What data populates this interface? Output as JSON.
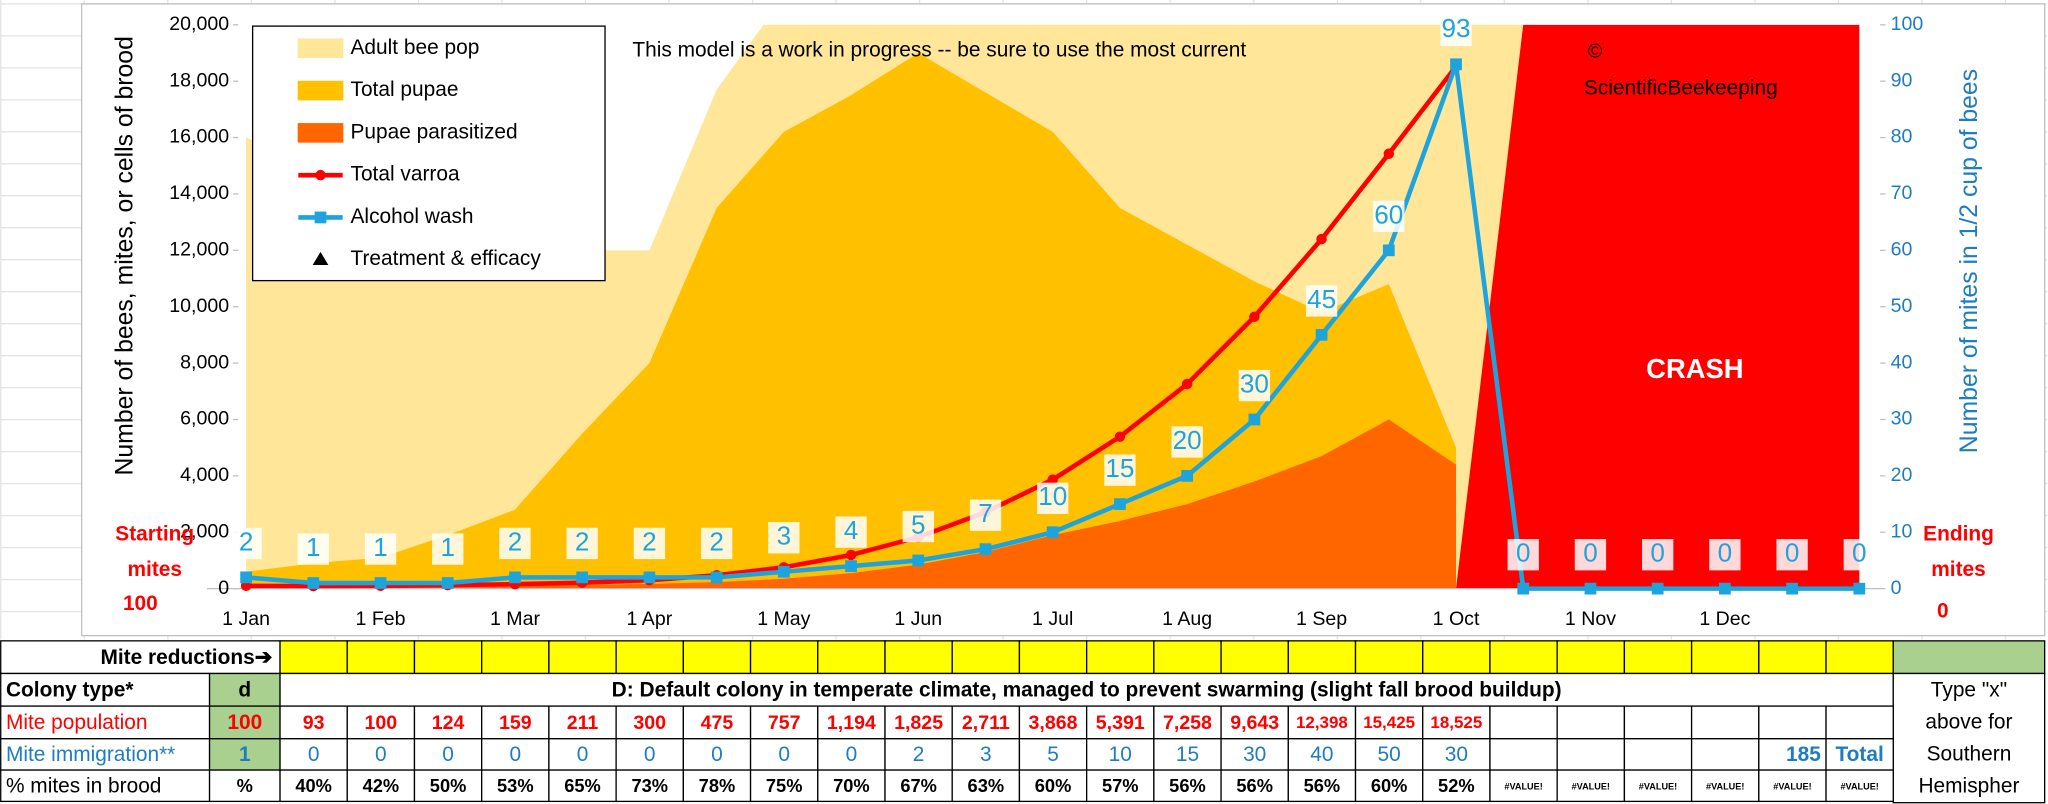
{
  "chart_data": {
    "type": "combo",
    "annotations": [
      "This model  is a work in progress -- be sure to use the most current",
      "©",
      "ScientificBeekeeping",
      "CRASH"
    ],
    "start_note": {
      "lines": [
        "Starting",
        "mites"
      ],
      "value": 100
    },
    "end_note": {
      "lines": [
        "Ending",
        "mites"
      ],
      "value": 0
    },
    "y_label": "Number of bees, mites, or cells of brood",
    "y2_label": "Number of mites in 1/2 cup of bees",
    "categories": [
      "1 Jan",
      null,
      "1 Feb",
      null,
      "1 Mar",
      null,
      "1 Apr",
      null,
      "1 May",
      null,
      "1 Jun",
      null,
      "1 Jul",
      null,
      "1 Aug",
      null,
      "1 Sep",
      null,
      "1 Oct",
      null,
      "1 Nov",
      null,
      "1 Dec",
      null,
      null
    ],
    "ylim": [
      0,
      20000
    ],
    "yticks": [
      0,
      {
        "value": 2000,
        "label": "2,000"
      },
      {
        "value": 4000,
        "label": "4,000"
      },
      {
        "value": 6000,
        "label": "6,000"
      },
      {
        "value": 8000,
        "label": "8,000"
      },
      {
        "value": 10000,
        "label": "10,000"
      },
      {
        "value": 12000,
        "label": "12,000"
      },
      {
        "value": 14000,
        "label": "14,000"
      },
      {
        "value": 16000,
        "label": "16,000"
      },
      {
        "value": 18000,
        "label": "18,000"
      },
      {
        "value": 20000,
        "label": "20,000"
      }
    ],
    "y2lim": [
      0,
      100
    ],
    "y2ticks": [
      0,
      10,
      20,
      30,
      40,
      50,
      60,
      70,
      80,
      90,
      100
    ],
    "grid": false,
    "legend": "upper-left",
    "series": [
      {
        "name": "Adult bee pop",
        "type": "area",
        "color": "#ffe699",
        "values": [
          16000,
          15000,
          14000,
          13000,
          12500,
          12000,
          12000,
          17700,
          21000,
          21000,
          21000,
          21000,
          21000,
          21000,
          21000,
          21000,
          21000,
          21000,
          21000,
          21000,
          null,
          null,
          null,
          null,
          null
        ]
      },
      {
        "name": "Total pupae",
        "type": "area",
        "color": "#ffc000",
        "values": [
          600,
          900,
          1100,
          1900,
          2800,
          5500,
          8000,
          13500,
          16200,
          17500,
          19000,
          17600,
          16200,
          13500,
          12200,
          10900,
          9800,
          10800,
          5000,
          null,
          null,
          null,
          null,
          null,
          null
        ]
      },
      {
        "name": "Pupae parasitized",
        "type": "area",
        "color": "#ff6600",
        "values": [
          50,
          50,
          60,
          80,
          100,
          130,
          170,
          230,
          350,
          550,
          850,
          1300,
          1900,
          2400,
          3000,
          3800,
          4700,
          6000,
          4400,
          null,
          null,
          null,
          null,
          null,
          null
        ]
      },
      {
        "name": "Total varroa",
        "type": "line",
        "color": "#ff0000",
        "marker": "circle",
        "values": [
          100,
          93,
          100,
          124,
          159,
          211,
          300,
          475,
          757,
          1194,
          1825,
          2711,
          3868,
          5391,
          7258,
          9643,
          12398,
          15425,
          18525,
          null,
          null,
          null,
          null,
          null,
          null
        ]
      },
      {
        "name": "Alcohol wash",
        "type": "line",
        "axis": "y2",
        "color": "#1ea4dc",
        "marker": "square",
        "data_labels": true,
        "values": [
          2,
          1,
          1,
          1,
          2,
          2,
          2,
          2,
          3,
          4,
          5,
          7,
          10,
          15,
          20,
          30,
          45,
          60,
          93,
          0,
          0,
          0,
          0,
          0,
          0
        ]
      },
      {
        "name": "Treatment & efficacy",
        "type": "marker",
        "color": "#000000",
        "values": [
          null,
          null,
          null,
          null,
          null,
          null,
          null,
          null,
          null,
          null,
          null,
          null,
          null,
          null,
          null,
          null,
          null,
          null,
          null,
          null,
          null,
          null,
          null,
          null,
          null
        ]
      },
      {
        "type": "area",
        "color": "#ff0000",
        "values": [
          null,
          null,
          null,
          null,
          null,
          null,
          null,
          null,
          null,
          null,
          null,
          null,
          null,
          null,
          null,
          null,
          null,
          null,
          0,
          20000,
          20000,
          20000,
          20000,
          20000,
          20000
        ]
      }
    ]
  },
  "table": {
    "mite_reductions_label": "Mite reductions➔",
    "colony_type": {
      "label": "Colony type*",
      "code": "d",
      "description": "D: Default colony in temperate climate, managed to prevent swarming (slight fall brood buildup)"
    },
    "mite_population": {
      "label": "Mite population",
      "start": "100",
      "values": [
        "93",
        "100",
        "124",
        "159",
        "211",
        "300",
        "475",
        "757",
        "1,194",
        "1,825",
        "2,711",
        "3,868",
        "5,391",
        "7,258",
        "9,643",
        "12,398",
        "15,425",
        "18,525"
      ]
    },
    "mite_immigration": {
      "label": "Mite immigration**",
      "start": "1",
      "values": [
        "0",
        "0",
        "0",
        "0",
        "0",
        "0",
        "0",
        "0",
        "0",
        "2",
        "3",
        "5",
        "10",
        "15",
        "30",
        "40",
        "50",
        "30"
      ],
      "total": "185",
      "total_label": "Total"
    },
    "mites_in_brood": {
      "label": "% mites in brood",
      "unit": "%",
      "values": [
        "40%",
        "42%",
        "50%",
        "53%",
        "65%",
        "73%",
        "78%",
        "75%",
        "70%",
        "67%",
        "63%",
        "60%",
        "57%",
        "56%",
        "56%",
        "56%",
        "60%",
        "52%",
        "#VALUE!",
        "#VALUE!",
        "#VALUE!",
        "#VALUE!",
        "#VALUE!",
        "#VALUE!"
      ]
    },
    "note": [
      "Type \"x\"",
      "above for",
      "Southern",
      "Hemispher"
    ]
  }
}
